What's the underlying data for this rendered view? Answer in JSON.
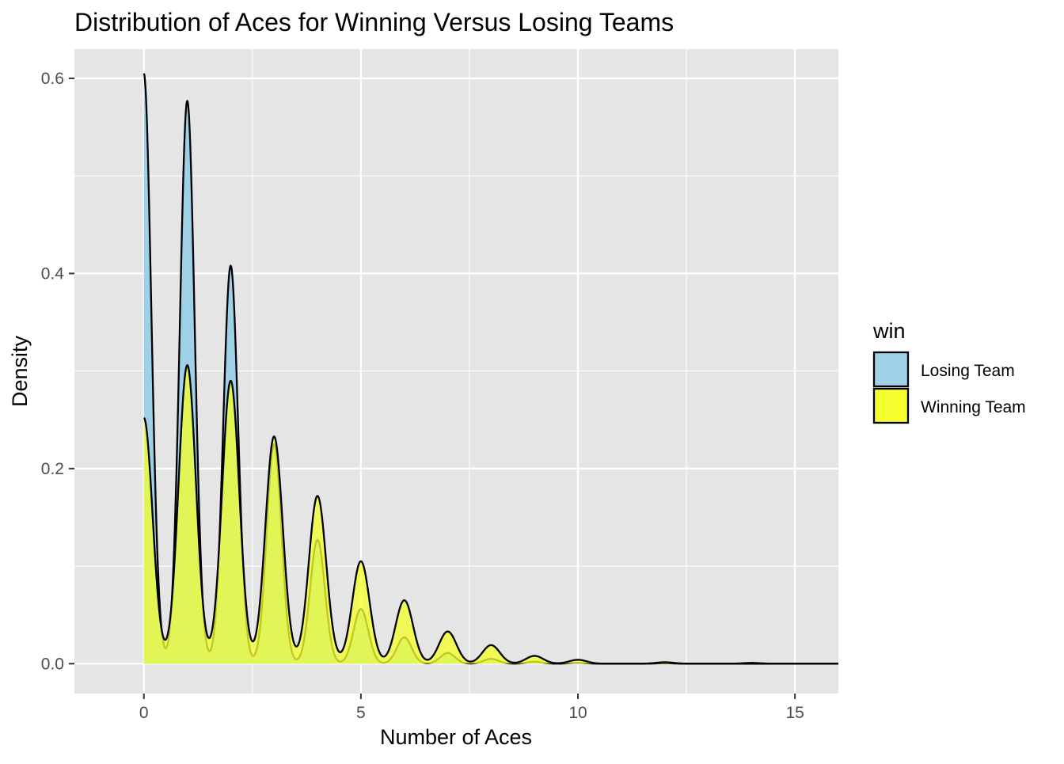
{
  "chart_data": {
    "type": "area",
    "title": "Distribution of Aces for Winning Versus Losing Teams",
    "xlabel": "Number of Aces",
    "ylabel": "Density",
    "xlim": [
      -1.6,
      16.0
    ],
    "ylim": [
      -0.0306,
      0.63
    ],
    "xticks": [
      0,
      5,
      10,
      15
    ],
    "xtick_labels": [
      "0",
      "5",
      "10",
      "15"
    ],
    "yticks": [
      0.0,
      0.2,
      0.4,
      0.6
    ],
    "ytick_labels": [
      "0.0",
      "0.2",
      "0.4",
      "0.6"
    ],
    "grid": true,
    "legend": {
      "title": "win",
      "position": "right",
      "entries": [
        "Losing Team",
        "Winning Team"
      ]
    },
    "colors": {
      "panel": "#e5e5e5",
      "grid": "#ffffff",
      "losing": "#9ed0e8",
      "winning": "#f5ff2e",
      "line": "#000000"
    },
    "series": [
      {
        "name": "Losing Team",
        "kernel_sd": 0.17,
        "x_max": 16,
        "peaks": [
          {
            "x": 0,
            "y": 0.605
          },
          {
            "x": 1,
            "y": 0.577
          },
          {
            "x": 2,
            "y": 0.408
          },
          {
            "x": 3,
            "y": 0.225
          },
          {
            "x": 4,
            "y": 0.127
          },
          {
            "x": 5,
            "y": 0.056
          },
          {
            "x": 6,
            "y": 0.027
          },
          {
            "x": 7,
            "y": 0.011
          },
          {
            "x": 8,
            "y": 0.005
          },
          {
            "x": 9,
            "y": 0.002
          },
          {
            "x": 10,
            "y": 0.001
          },
          {
            "x": 12,
            "y": 0.0005
          }
        ]
      },
      {
        "name": "Winning Team",
        "kernel_sd": 0.2,
        "x_max": 16,
        "peaks": [
          {
            "x": 0,
            "y": 0.252
          },
          {
            "x": 1,
            "y": 0.306
          },
          {
            "x": 2,
            "y": 0.29
          },
          {
            "x": 3,
            "y": 0.233
          },
          {
            "x": 4,
            "y": 0.172
          },
          {
            "x": 5,
            "y": 0.105
          },
          {
            "x": 6,
            "y": 0.065
          },
          {
            "x": 7,
            "y": 0.033
          },
          {
            "x": 8,
            "y": 0.019
          },
          {
            "x": 9,
            "y": 0.008
          },
          {
            "x": 10,
            "y": 0.004
          },
          {
            "x": 12,
            "y": 0.0015
          },
          {
            "x": 14,
            "y": 0.0008
          }
        ]
      }
    ]
  }
}
